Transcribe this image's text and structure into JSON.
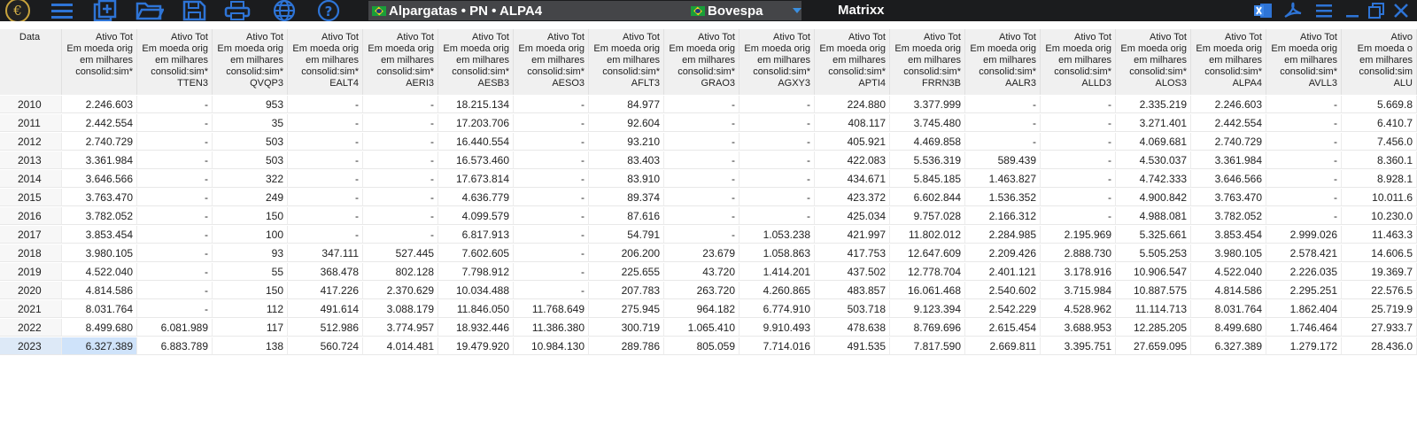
{
  "toolbar": {
    "logo_symbol": "€",
    "icons": [
      "menu-icon",
      "new-document-icon",
      "open-folder-icon",
      "save-icon",
      "print-icon",
      "globe-icon",
      "help-icon"
    ],
    "selector_security": "Alpargatas • PN • ALPA4",
    "selector_exchange": "Bovespa",
    "window_title": "Matrixx",
    "right_icons": [
      "excel-icon",
      "pdf-icon",
      "menu-icon",
      "minimize-icon",
      "restore-icon",
      "close-icon"
    ]
  },
  "colors": {
    "topbar": "#1b1c1e",
    "accent": "#2e74d6",
    "selection": "#cfe3fa"
  },
  "table": {
    "columns": [
      "Data",
      "Ativo Tot\nEm moeda orig\nem milhares\nconsolid:sim*",
      "Ativo Tot\nEm moeda orig\nem milhares\nconsolid:sim*\nTTEN3",
      "Ativo Tot\nEm moeda orig\nem milhares\nconsolid:sim*\nQVQP3",
      "Ativo Tot\nEm moeda orig\nem milhares\nconsolid:sim*\nEALT4",
      "Ativo Tot\nEm moeda orig\nem milhares\nconsolid:sim*\nAERI3",
      "Ativo Tot\nEm moeda orig\nem milhares\nconsolid:sim*\nAESB3",
      "Ativo Tot\nEm moeda orig\nem milhares\nconsolid:sim*\nAESO3",
      "Ativo Tot\nEm moeda orig\nem milhares\nconsolid:sim*\nAFLT3",
      "Ativo Tot\nEm moeda orig\nem milhares\nconsolid:sim*\nGRAO3",
      "Ativo Tot\nEm moeda orig\nem milhares\nconsolid:sim*\nAGXY3",
      "Ativo Tot\nEm moeda orig\nem milhares\nconsolid:sim*\nAPTI4",
      "Ativo Tot\nEm moeda orig\nem milhares\nconsolid:sim*\nFRRN3B",
      "Ativo Tot\nEm moeda orig\nem milhares\nconsolid:sim*\nAALR3",
      "Ativo Tot\nEm moeda orig\nem milhares\nconsolid:sim*\nALLD3",
      "Ativo Tot\nEm moeda orig\nem milhares\nconsolid:sim*\nALOS3",
      "Ativo Tot\nEm moeda orig\nem milhares\nconsolid:sim*\nALPA4",
      "Ativo Tot\nEm moeda orig\nem milhares\nconsolid:sim*\nAVLL3",
      "Ativo\nEm moeda o\nem milhares\nconsolid:sim\nALU"
    ],
    "rows": [
      [
        "2010",
        "2.246.603",
        "-",
        "953",
        "-",
        "-",
        "18.215.134",
        "-",
        "84.977",
        "-",
        "-",
        "224.880",
        "3.377.999",
        "-",
        "-",
        "2.335.219",
        "2.246.603",
        "-",
        "5.669.8"
      ],
      [
        "2011",
        "2.442.554",
        "-",
        "35",
        "-",
        "-",
        "17.203.706",
        "-",
        "92.604",
        "-",
        "-",
        "408.117",
        "3.745.480",
        "-",
        "-",
        "3.271.401",
        "2.442.554",
        "-",
        "6.410.7"
      ],
      [
        "2012",
        "2.740.729",
        "-",
        "503",
        "-",
        "-",
        "16.440.554",
        "-",
        "93.210",
        "-",
        "-",
        "405.921",
        "4.469.858",
        "-",
        "-",
        "4.069.681",
        "2.740.729",
        "-",
        "7.456.0"
      ],
      [
        "2013",
        "3.361.984",
        "-",
        "503",
        "-",
        "-",
        "16.573.460",
        "-",
        "83.403",
        "-",
        "-",
        "422.083",
        "5.536.319",
        "589.439",
        "-",
        "4.530.037",
        "3.361.984",
        "-",
        "8.360.1"
      ],
      [
        "2014",
        "3.646.566",
        "-",
        "322",
        "-",
        "-",
        "17.673.814",
        "-",
        "83.910",
        "-",
        "-",
        "434.671",
        "5.845.185",
        "1.463.827",
        "-",
        "4.742.333",
        "3.646.566",
        "-",
        "8.928.1"
      ],
      [
        "2015",
        "3.763.470",
        "-",
        "249",
        "-",
        "-",
        "4.636.779",
        "-",
        "89.374",
        "-",
        "-",
        "423.372",
        "6.602.844",
        "1.536.352",
        "-",
        "4.900.842",
        "3.763.470",
        "-",
        "10.011.6"
      ],
      [
        "2016",
        "3.782.052",
        "-",
        "150",
        "-",
        "-",
        "4.099.579",
        "-",
        "87.616",
        "-",
        "-",
        "425.034",
        "9.757.028",
        "2.166.312",
        "-",
        "4.988.081",
        "3.782.052",
        "-",
        "10.230.0"
      ],
      [
        "2017",
        "3.853.454",
        "-",
        "100",
        "-",
        "-",
        "6.817.913",
        "-",
        "54.791",
        "-",
        "1.053.238",
        "421.997",
        "11.802.012",
        "2.284.985",
        "2.195.969",
        "5.325.661",
        "3.853.454",
        "2.999.026",
        "11.463.3"
      ],
      [
        "2018",
        "3.980.105",
        "-",
        "93",
        "347.111",
        "527.445",
        "7.602.605",
        "-",
        "206.200",
        "23.679",
        "1.058.863",
        "417.753",
        "12.647.609",
        "2.209.426",
        "2.888.730",
        "5.505.253",
        "3.980.105",
        "2.578.421",
        "14.606.5"
      ],
      [
        "2019",
        "4.522.040",
        "-",
        "55",
        "368.478",
        "802.128",
        "7.798.912",
        "-",
        "225.655",
        "43.720",
        "1.414.201",
        "437.502",
        "12.778.704",
        "2.401.121",
        "3.178.916",
        "10.906.547",
        "4.522.040",
        "2.226.035",
        "19.369.7"
      ],
      [
        "2020",
        "4.814.586",
        "-",
        "150",
        "417.226",
        "2.370.629",
        "10.034.488",
        "-",
        "207.783",
        "263.720",
        "4.260.865",
        "483.857",
        "16.061.468",
        "2.540.602",
        "3.715.984",
        "10.887.575",
        "4.814.586",
        "2.295.251",
        "22.576.5"
      ],
      [
        "2021",
        "8.031.764",
        "-",
        "112",
        "491.614",
        "3.088.179",
        "11.846.050",
        "11.768.649",
        "275.945",
        "964.182",
        "6.774.910",
        "503.718",
        "9.123.394",
        "2.542.229",
        "4.528.962",
        "11.114.713",
        "8.031.764",
        "1.862.404",
        "25.719.9"
      ],
      [
        "2022",
        "8.499.680",
        "6.081.989",
        "117",
        "512.986",
        "3.774.957",
        "18.932.446",
        "11.386.380",
        "300.719",
        "1.065.410",
        "9.910.493",
        "478.638",
        "8.769.696",
        "2.615.454",
        "3.688.953",
        "12.285.205",
        "8.499.680",
        "1.746.464",
        "27.933.7"
      ],
      [
        "2023",
        "6.327.389",
        "6.883.789",
        "138",
        "560.724",
        "4.014.481",
        "19.479.920",
        "10.984.130",
        "289.786",
        "805.059",
        "7.714.016",
        "491.535",
        "7.817.590",
        "2.669.811",
        "3.395.751",
        "27.659.095",
        "6.327.389",
        "1.279.172",
        "28.436.0"
      ]
    ],
    "selected_row": 13,
    "selected_col": 1
  }
}
